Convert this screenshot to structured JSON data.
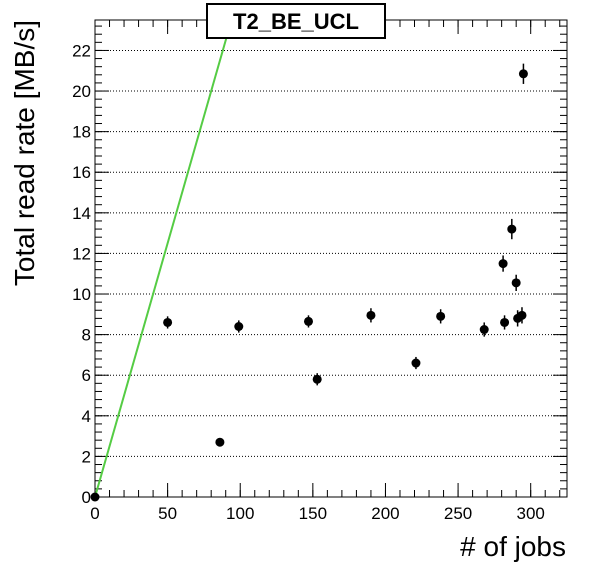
{
  "chart_data": {
    "type": "scatter",
    "title": "T2_BE_UCL",
    "xlabel": "# of jobs",
    "ylabel": "Total read rate [MB/s]",
    "xlim": [
      0,
      325
    ],
    "ylim": [
      0,
      23.5
    ],
    "grid": "horizontal dotted",
    "x_ticks": [
      "0",
      "50",
      "100",
      "150",
      "200",
      "250",
      "300"
    ],
    "y_ticks": [
      "0",
      "2",
      "4",
      "6",
      "8",
      "10",
      "12",
      "14",
      "16",
      "18",
      "20",
      "22"
    ],
    "series": [
      {
        "marker": "circle",
        "color": "#000000",
        "points": [
          {
            "x": 0,
            "y": 0,
            "err": 0.1
          },
          {
            "x": 50,
            "y": 8.6,
            "err": 0.3
          },
          {
            "x": 86,
            "y": 2.7,
            "err": 0.15
          },
          {
            "x": 99,
            "y": 8.4,
            "err": 0.3
          },
          {
            "x": 147,
            "y": 8.65,
            "err": 0.3
          },
          {
            "x": 153,
            "y": 5.8,
            "err": 0.3
          },
          {
            "x": 190,
            "y": 8.95,
            "err": 0.35
          },
          {
            "x": 221,
            "y": 6.6,
            "err": 0.3
          },
          {
            "x": 238,
            "y": 8.9,
            "err": 0.35
          },
          {
            "x": 268,
            "y": 8.25,
            "err": 0.35
          },
          {
            "x": 281,
            "y": 11.5,
            "err": 0.4
          },
          {
            "x": 282,
            "y": 8.6,
            "err": 0.35
          },
          {
            "x": 287,
            "y": 13.2,
            "err": 0.5
          },
          {
            "x": 290,
            "y": 10.55,
            "err": 0.4
          },
          {
            "x": 291,
            "y": 8.8,
            "err": 0.4
          },
          {
            "x": 294,
            "y": 8.95,
            "err": 0.4
          },
          {
            "x": 295,
            "y": 20.85,
            "err": 0.5
          }
        ]
      }
    ],
    "reference_line": {
      "color": "#55cc44",
      "slope": 0.25,
      "intercept": 0
    }
  }
}
